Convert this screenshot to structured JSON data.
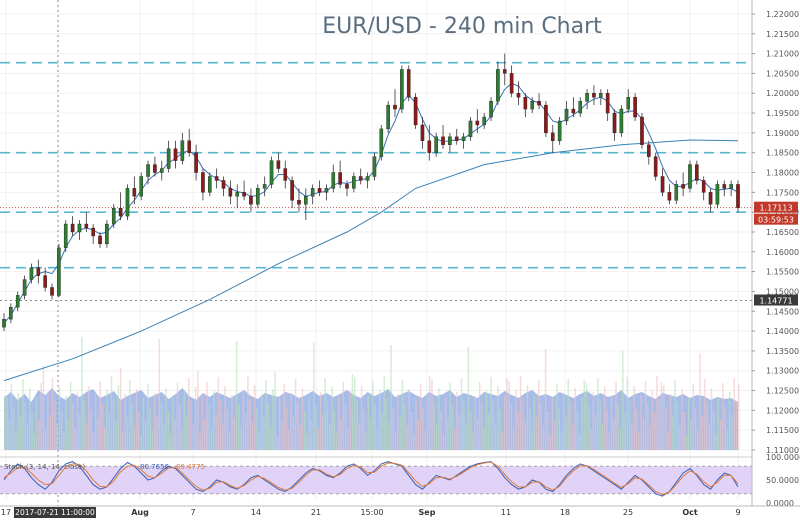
{
  "chart_data": {
    "type": "candlestick",
    "title": "EUR/USD - 240 min Chart",
    "y_ticks": [
      "1.22000",
      "1.21500",
      "1.21000",
      "1.20500",
      "1.20000",
      "1.19500",
      "1.19000",
      "1.18500",
      "1.18000",
      "1.17500",
      "1.17000",
      "1.16500",
      "1.16000",
      "1.15500",
      "1.15000",
      "1.14500",
      "1.14000",
      "1.13500",
      "1.13000",
      "1.12500",
      "1.12000",
      "1.11500",
      "1.11000"
    ],
    "ylim": [
      1.11,
      1.2215
    ],
    "x_ticks": [
      "17",
      "Aug",
      "7",
      "14",
      "21",
      "15:00",
      "Sep",
      "11",
      "18",
      "25",
      "Oct",
      "9"
    ],
    "cursor_time_label": "2017-07-21 11:00:00",
    "price_labels": {
      "last": "1.17113",
      "countdown": "03:59:53",
      "crosshair": "1.14771"
    },
    "horizontal_levels": [
      1.2077,
      1.185,
      1.17,
      1.156
    ],
    "ohlc": [
      [
        1.141,
        1.1445,
        1.14,
        1.143
      ],
      [
        1.143,
        1.147,
        1.142,
        1.146
      ],
      [
        1.146,
        1.15,
        1.145,
        1.149
      ],
      [
        1.149,
        1.154,
        1.148,
        1.153
      ],
      [
        1.153,
        1.157,
        1.152,
        1.156
      ],
      [
        1.156,
        1.158,
        1.152,
        1.154
      ],
      [
        1.154,
        1.156,
        1.15,
        1.151
      ],
      [
        1.151,
        1.152,
        1.148,
        1.149
      ],
      [
        1.149,
        1.162,
        1.1485,
        1.161
      ],
      [
        1.161,
        1.168,
        1.16,
        1.167
      ],
      [
        1.167,
        1.169,
        1.164,
        1.165
      ],
      [
        1.165,
        1.168,
        1.163,
        1.167
      ],
      [
        1.167,
        1.17,
        1.165,
        1.166
      ],
      [
        1.166,
        1.167,
        1.162,
        1.164
      ],
      [
        1.164,
        1.165,
        1.161,
        1.162
      ],
      [
        1.162,
        1.168,
        1.161,
        1.167
      ],
      [
        1.167,
        1.172,
        1.166,
        1.171
      ],
      [
        1.171,
        1.175,
        1.168,
        1.169
      ],
      [
        1.169,
        1.177,
        1.168,
        1.176
      ],
      [
        1.176,
        1.179,
        1.172,
        1.174
      ],
      [
        1.174,
        1.18,
        1.173,
        1.179
      ],
      [
        1.179,
        1.183,
        1.177,
        1.182
      ],
      [
        1.182,
        1.184,
        1.179,
        1.18
      ],
      [
        1.18,
        1.183,
        1.178,
        1.181
      ],
      [
        1.181,
        1.188,
        1.18,
        1.186
      ],
      [
        1.186,
        1.188,
        1.181,
        1.183
      ],
      [
        1.183,
        1.19,
        1.182,
        1.188
      ],
      [
        1.188,
        1.191,
        1.184,
        1.185
      ],
      [
        1.185,
        1.187,
        1.178,
        1.18
      ],
      [
        1.18,
        1.181,
        1.173,
        1.175
      ],
      [
        1.175,
        1.18,
        1.174,
        1.179
      ],
      [
        1.179,
        1.181,
        1.176,
        1.178
      ],
      [
        1.178,
        1.179,
        1.174,
        1.176
      ],
      [
        1.176,
        1.178,
        1.172,
        1.174
      ],
      [
        1.174,
        1.177,
        1.171,
        1.175
      ],
      [
        1.175,
        1.178,
        1.173,
        1.174
      ],
      [
        1.174,
        1.176,
        1.17,
        1.172
      ],
      [
        1.172,
        1.177,
        1.171,
        1.176
      ],
      [
        1.176,
        1.179,
        1.174,
        1.177
      ],
      [
        1.177,
        1.184,
        1.176,
        1.183
      ],
      [
        1.183,
        1.185,
        1.18,
        1.181
      ],
      [
        1.181,
        1.183,
        1.176,
        1.178
      ],
      [
        1.178,
        1.179,
        1.171,
        1.173
      ],
      [
        1.173,
        1.176,
        1.17,
        1.172
      ],
      [
        1.172,
        1.176,
        1.168,
        1.174
      ],
      [
        1.174,
        1.177,
        1.172,
        1.176
      ],
      [
        1.176,
        1.178,
        1.174,
        1.175
      ],
      [
        1.175,
        1.177,
        1.173,
        1.176
      ],
      [
        1.176,
        1.182,
        1.175,
        1.18
      ],
      [
        1.18,
        1.183,
        1.176,
        1.177
      ],
      [
        1.177,
        1.178,
        1.174,
        1.176
      ],
      [
        1.176,
        1.18,
        1.175,
        1.179
      ],
      [
        1.179,
        1.181,
        1.177,
        1.178
      ],
      [
        1.178,
        1.18,
        1.176,
        1.179
      ],
      [
        1.179,
        1.185,
        1.178,
        1.184
      ],
      [
        1.184,
        1.192,
        1.183,
        1.191
      ],
      [
        1.191,
        1.198,
        1.19,
        1.197
      ],
      [
        1.197,
        1.201,
        1.194,
        1.196
      ],
      [
        1.196,
        1.207,
        1.195,
        1.206
      ],
      [
        1.206,
        1.207,
        1.198,
        1.199
      ],
      [
        1.199,
        1.2,
        1.191,
        1.192
      ],
      [
        1.192,
        1.194,
        1.186,
        1.188
      ],
      [
        1.188,
        1.192,
        1.183,
        1.185
      ],
      [
        1.185,
        1.19,
        1.184,
        1.189
      ],
      [
        1.189,
        1.192,
        1.186,
        1.187
      ],
      [
        1.187,
        1.19,
        1.185,
        1.189
      ],
      [
        1.189,
        1.191,
        1.187,
        1.188
      ],
      [
        1.188,
        1.19,
        1.186,
        1.189
      ],
      [
        1.189,
        1.194,
        1.188,
        1.193
      ],
      [
        1.193,
        1.196,
        1.19,
        1.192
      ],
      [
        1.192,
        1.195,
        1.191,
        1.194
      ],
      [
        1.194,
        1.199,
        1.193,
        1.198
      ],
      [
        1.198,
        1.208,
        1.197,
        1.206
      ],
      [
        1.206,
        1.21,
        1.202,
        1.205
      ],
      [
        1.205,
        1.207,
        1.199,
        1.2
      ],
      [
        1.2,
        1.203,
        1.197,
        1.199
      ],
      [
        1.199,
        1.2,
        1.194,
        1.196
      ],
      [
        1.196,
        1.199,
        1.195,
        1.198
      ],
      [
        1.198,
        1.2,
        1.196,
        1.197
      ],
      [
        1.197,
        1.198,
        1.189,
        1.19
      ],
      [
        1.19,
        1.192,
        1.185,
        1.188
      ],
      [
        1.188,
        1.194,
        1.187,
        1.193
      ],
      [
        1.193,
        1.198,
        1.192,
        1.196
      ],
      [
        1.196,
        1.199,
        1.194,
        1.195
      ],
      [
        1.195,
        1.199,
        1.194,
        1.198
      ],
      [
        1.198,
        1.201,
        1.196,
        1.2
      ],
      [
        1.2,
        1.202,
        1.197,
        1.199
      ],
      [
        1.199,
        1.201,
        1.197,
        1.2
      ],
      [
        1.2,
        1.201,
        1.193,
        1.195
      ],
      [
        1.195,
        1.196,
        1.188,
        1.19
      ],
      [
        1.19,
        1.197,
        1.189,
        1.196
      ],
      [
        1.196,
        1.201,
        1.195,
        1.199
      ],
      [
        1.199,
        1.2,
        1.193,
        1.194
      ],
      [
        1.194,
        1.195,
        1.186,
        1.187
      ],
      [
        1.187,
        1.188,
        1.182,
        1.184
      ],
      [
        1.184,
        1.185,
        1.178,
        1.179
      ],
      [
        1.179,
        1.181,
        1.174,
        1.175
      ],
      [
        1.175,
        1.177,
        1.172,
        1.173
      ],
      [
        1.173,
        1.178,
        1.172,
        1.177
      ],
      [
        1.177,
        1.18,
        1.174,
        1.176
      ],
      [
        1.176,
        1.183,
        1.175,
        1.182
      ],
      [
        1.182,
        1.183,
        1.177,
        1.178
      ],
      [
        1.178,
        1.179,
        1.173,
        1.175
      ],
      [
        1.175,
        1.176,
        1.17,
        1.172
      ],
      [
        1.172,
        1.178,
        1.171,
        1.177
      ],
      [
        1.177,
        1.178,
        1.174,
        1.176
      ],
      [
        1.176,
        1.178,
        1.174,
        1.177
      ],
      [
        1.177,
        1.178,
        1.17,
        1.1711
      ]
    ],
    "sma_fast": [
      1.142,
      1.144,
      1.147,
      1.15,
      1.153,
      1.1545,
      1.155,
      1.1545,
      1.157,
      1.161,
      1.164,
      1.1655,
      1.166,
      1.1655,
      1.1645,
      1.165,
      1.167,
      1.1685,
      1.171,
      1.173,
      1.1755,
      1.178,
      1.1795,
      1.1805,
      1.1825,
      1.1835,
      1.185,
      1.1855,
      1.184,
      1.181,
      1.1795,
      1.1785,
      1.1775,
      1.176,
      1.1752,
      1.1748,
      1.174,
      1.1742,
      1.1752,
      1.1775,
      1.1795,
      1.1795,
      1.1775,
      1.1752,
      1.174,
      1.1745,
      1.175,
      1.1752,
      1.1768,
      1.1775,
      1.1772,
      1.1778,
      1.1782,
      1.1785,
      1.1805,
      1.1845,
      1.1895,
      1.193,
      1.1975,
      1.1995,
      1.1975,
      1.1935,
      1.19,
      1.1885,
      1.1878,
      1.188,
      1.1882,
      1.1885,
      1.1898,
      1.191,
      1.1922,
      1.1942,
      1.198,
      1.201,
      1.2025,
      1.2018,
      1.1995,
      1.1982,
      1.1975,
      1.1955,
      1.193,
      1.1925,
      1.1935,
      1.1945,
      1.1958,
      1.1975,
      1.1985,
      1.199,
      1.198,
      1.1955,
      1.1948,
      1.1955,
      1.1955,
      1.1935,
      1.19,
      1.186,
      1.1815,
      1.178,
      1.1765,
      1.1765,
      1.1775,
      1.1785,
      1.1778,
      1.176,
      1.1755,
      1.1758,
      1.176,
      1.175
    ],
    "sma_slow": {
      "x": [
        0,
        10,
        20,
        30,
        40,
        50,
        55,
        60,
        70,
        80,
        90,
        100,
        107
      ],
      "values": [
        1.1275,
        1.133,
        1.14,
        1.148,
        1.157,
        1.165,
        1.17,
        1.176,
        1.182,
        1.185,
        1.187,
        1.1882,
        1.188
      ]
    },
    "volume": [
      52,
      58,
      50,
      56,
      48,
      60,
      55,
      62,
      54,
      50,
      57,
      53,
      58,
      61,
      52,
      55,
      59,
      50,
      54,
      57,
      60,
      52,
      55,
      58,
      51,
      56,
      62,
      54,
      50,
      57,
      53,
      58,
      55,
      52,
      56,
      60,
      54,
      51,
      57,
      55,
      53,
      58,
      56,
      52,
      55,
      59,
      54,
      57,
      53,
      56,
      60,
      55,
      52,
      58,
      54,
      57,
      61,
      53,
      56,
      59,
      55,
      52,
      58,
      54,
      56,
      60,
      53,
      57,
      55,
      52,
      58,
      56,
      54,
      59,
      55,
      52,
      57,
      60,
      54,
      56,
      53,
      58,
      55,
      52,
      56,
      59,
      54,
      57,
      53,
      55,
      60,
      52,
      56,
      58,
      54,
      51,
      57,
      55,
      53,
      56,
      52,
      55,
      54,
      50,
      53,
      51,
      52,
      48
    ],
    "stochastic": {
      "label": "Stoch (3, 14, 14, close)",
      "ylim": [
        0,
        100
      ],
      "ticks": [
        "100.0000",
        "50.0000",
        "0.0000"
      ],
      "k": [
        50,
        70,
        85,
        75,
        55,
        40,
        30,
        45,
        70,
        85,
        90,
        80,
        60,
        40,
        30,
        35,
        55,
        75,
        88,
        80,
        65,
        50,
        55,
        70,
        80,
        75,
        60,
        45,
        30,
        25,
        35,
        50,
        45,
        35,
        30,
        40,
        55,
        60,
        50,
        40,
        30,
        25,
        35,
        50,
        65,
        75,
        70,
        60,
        55,
        65,
        80,
        85,
        75,
        60,
        70,
        85,
        90,
        85,
        80,
        60,
        40,
        30,
        45,
        60,
        55,
        50,
        60,
        70,
        80,
        85,
        88,
        90,
        75,
        55,
        40,
        30,
        35,
        50,
        45,
        30,
        25,
        40,
        60,
        75,
        85,
        80,
        70,
        60,
        50,
        40,
        30,
        45,
        60,
        50,
        35,
        20,
        15,
        25,
        45,
        65,
        75,
        60,
        40,
        30,
        50,
        65,
        60,
        35
      ],
      "d": [
        55,
        65,
        77,
        78,
        65,
        50,
        40,
        42,
        60,
        78,
        85,
        84,
        70,
        50,
        36,
        35,
        48,
        68,
        80,
        82,
        72,
        58,
        55,
        65,
        76,
        77,
        65,
        50,
        36,
        28,
        32,
        45,
        46,
        38,
        32,
        38,
        50,
        58,
        53,
        44,
        34,
        28,
        32,
        45,
        60,
        72,
        72,
        63,
        57,
        62,
        75,
        82,
        78,
        66,
        67,
        80,
        87,
        86,
        82,
        66,
        48,
        36,
        42,
        55,
        56,
        52,
        58,
        67,
        77,
        83,
        87,
        89,
        80,
        62,
        46,
        35,
        35,
        45,
        46,
        35,
        28,
        36,
        55,
        70,
        81,
        81,
        73,
        63,
        53,
        43,
        34,
        42,
        55,
        52,
        39,
        25,
        18,
        24,
        40,
        58,
        70,
        63,
        46,
        35,
        45,
        60,
        60,
        42
      ],
      "level_labels": [
        "80.7656",
        "89.4775"
      ]
    }
  }
}
